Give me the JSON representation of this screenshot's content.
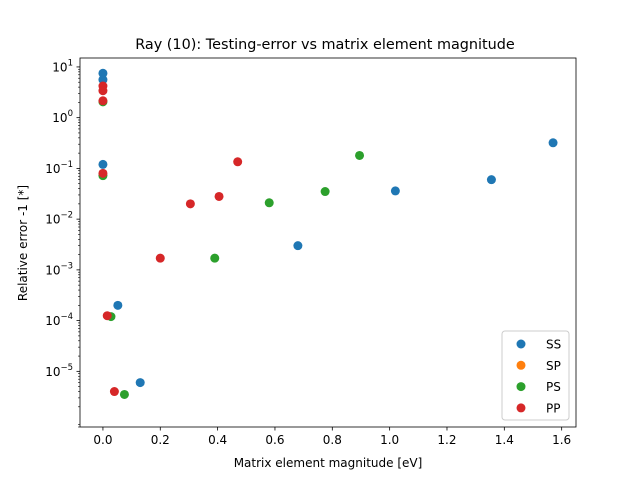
{
  "chart_data": {
    "type": "scatter",
    "title": "Ray (10): Testing-error vs matrix element magnitude",
    "xlabel": "Matrix element magnitude [eV]",
    "ylabel": "Relative error -1 [*]",
    "xlim": [
      -0.08,
      1.65
    ],
    "ylim": [
      8e-07,
      15
    ],
    "yscale": "log",
    "x_ticks": [
      {
        "v": 0.0,
        "label": "0.0"
      },
      {
        "v": 0.2,
        "label": "0.2"
      },
      {
        "v": 0.4,
        "label": "0.4"
      },
      {
        "v": 0.6,
        "label": "0.6"
      },
      {
        "v": 0.8,
        "label": "0.8"
      },
      {
        "v": 1.0,
        "label": "1.0"
      },
      {
        "v": 1.2,
        "label": "1.2"
      },
      {
        "v": 1.4,
        "label": "1.4"
      },
      {
        "v": 1.6,
        "label": "1.6"
      }
    ],
    "y_ticks": [
      {
        "v": 1e-05,
        "base": "10",
        "exp": "−5"
      },
      {
        "v": 0.0001,
        "base": "10",
        "exp": "−4"
      },
      {
        "v": 0.001,
        "base": "10",
        "exp": "−3"
      },
      {
        "v": 0.01,
        "base": "10",
        "exp": "−2"
      },
      {
        "v": 0.1,
        "base": "10",
        "exp": "−1"
      },
      {
        "v": 1,
        "base": "10",
        "exp": "0"
      },
      {
        "v": 10,
        "base": "10",
        "exp": "1"
      }
    ],
    "grid": false,
    "legend_position": "bottom-right",
    "series": [
      {
        "name": "SS",
        "color": "#1f77b4",
        "points": [
          [
            0.0,
            7.5
          ],
          [
            0.0,
            5.6
          ],
          [
            0.0,
            0.12
          ],
          [
            0.052,
            0.0002
          ],
          [
            0.13,
            6e-06
          ],
          [
            0.68,
            0.003
          ],
          [
            1.02,
            0.036
          ],
          [
            1.355,
            0.06
          ],
          [
            1.57,
            0.32
          ]
        ]
      },
      {
        "name": "SP",
        "color": "#ff7f0e",
        "points": []
      },
      {
        "name": "PS",
        "color": "#2ca02c",
        "points": [
          [
            0.0,
            2.05
          ],
          [
            0.0,
            0.072
          ],
          [
            0.028,
            0.00012
          ],
          [
            0.075,
            3.5e-06
          ],
          [
            0.39,
            0.0017
          ],
          [
            0.58,
            0.021
          ],
          [
            0.775,
            0.035
          ],
          [
            0.895,
            0.18
          ]
        ]
      },
      {
        "name": "PP",
        "color": "#d62728",
        "points": [
          [
            0.0,
            4.2
          ],
          [
            0.0,
            3.4
          ],
          [
            0.0,
            2.15
          ],
          [
            0.0,
            0.08
          ],
          [
            0.015,
            0.000125
          ],
          [
            0.04,
            4e-06
          ],
          [
            0.2,
            0.0017
          ],
          [
            0.305,
            0.02
          ],
          [
            0.405,
            0.028
          ],
          [
            0.47,
            0.135
          ]
        ]
      }
    ]
  }
}
